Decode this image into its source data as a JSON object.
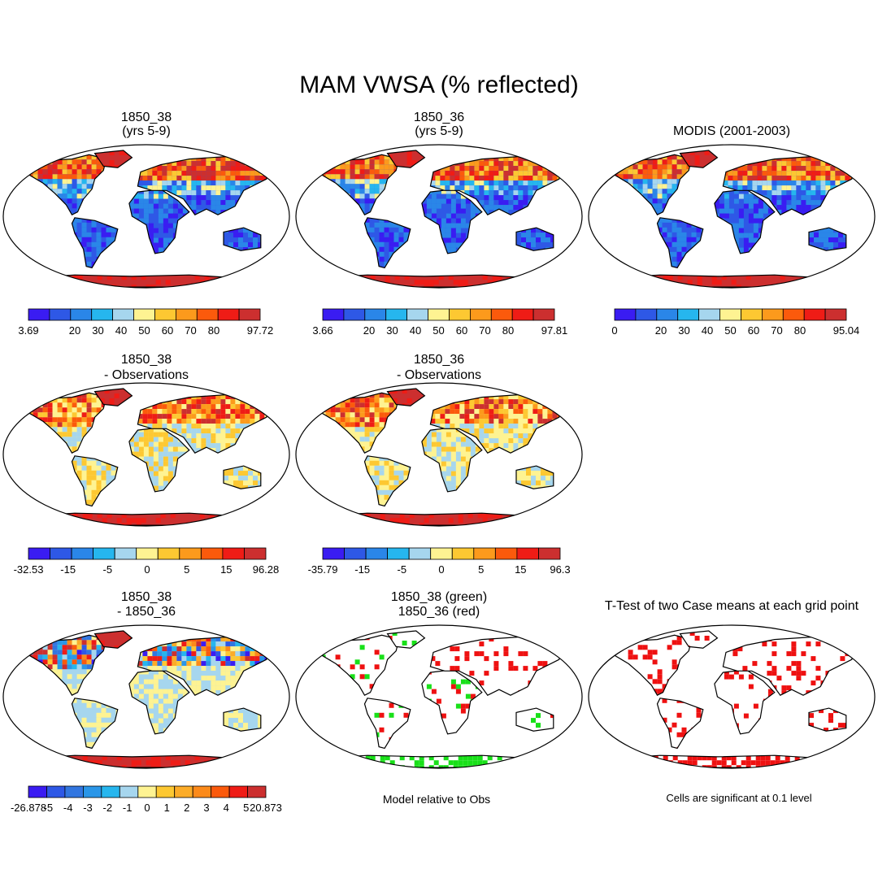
{
  "title": "MAM VWSA (% reflected)",
  "palettes": {
    "abs": [
      "#3a1cf2",
      "#2e58e6",
      "#2a86e8",
      "#26b6ee",
      "#a6d6ee",
      "#fef392",
      "#fdc832",
      "#fc9a1c",
      "#fb5a0c",
      "#ef1c16",
      "#cc2f2f"
    ],
    "diff": [
      "#3a1cf2",
      "#2e58e6",
      "#2a86e8",
      "#26b6ee",
      "#a6d6ee",
      "#fef392",
      "#fdc832",
      "#fc9a1c",
      "#fb5a0c",
      "#ef1c16",
      "#cc2f2f"
    ],
    "ddif": [
      "#3a1cf2",
      "#2e58e6",
      "#3276e0",
      "#2a96e8",
      "#26b6ee",
      "#a6d6ee",
      "#fef392",
      "#fdc832",
      "#fcac28",
      "#fc8a1a",
      "#fb5a0c",
      "#ef1c16",
      "#cc2f2f"
    ],
    "sig_green": "#19e019",
    "sig_red": "#ee1111"
  },
  "panels": [
    {
      "id": "p1",
      "title1": "1850_38",
      "title2": "(yrs 5-9)",
      "kind": "abs",
      "palette": "abs",
      "ticks": [
        "3.69",
        "",
        "20",
        "30",
        "40",
        "50",
        "60",
        "70",
        "80",
        "",
        "97.72"
      ]
    },
    {
      "id": "p2",
      "title1": "1850_36",
      "title2": "(yrs 5-9)",
      "kind": "abs",
      "palette": "abs",
      "ticks": [
        "3.66",
        "",
        "20",
        "30",
        "40",
        "50",
        "60",
        "70",
        "80",
        "",
        "97.81"
      ]
    },
    {
      "id": "p3",
      "title1": "MODIS (2001-2003)",
      "title2": "",
      "kind": "obs",
      "palette": "abs",
      "ticks": [
        "0",
        "",
        "20",
        "30",
        "40",
        "50",
        "60",
        "70",
        "80",
        "",
        "95.04"
      ]
    },
    {
      "id": "p4",
      "title1": "1850_38",
      "title2": "- Observations",
      "kind": "diff",
      "palette": "diff",
      "ticks": [
        "-32.53",
        "",
        "-15",
        "",
        "-5",
        "",
        "0",
        "",
        "5",
        "",
        "15",
        "",
        "96.28"
      ]
    },
    {
      "id": "p5",
      "title1": "1850_36",
      "title2": "- Observations",
      "kind": "diff",
      "palette": "diff",
      "ticks": [
        "-35.79",
        "",
        "-15",
        "",
        "-5",
        "",
        "0",
        "",
        "5",
        "",
        "15",
        "",
        "96.3"
      ]
    },
    {
      "id": "p6",
      "title1": "1850_38",
      "title2": "- 1850_36",
      "kind": "ddiff",
      "palette": "ddif",
      "ticks": [
        "-26.878",
        "-5",
        "-4",
        "-3",
        "-2",
        "-1",
        "0",
        "1",
        "2",
        "3",
        "4",
        "5",
        "20.873"
      ]
    },
    {
      "id": "p7",
      "title1": "1850_38 (green)",
      "title2": "1850_36 (red)",
      "kind": "sig2",
      "palette": "",
      "ticks": []
    },
    {
      "id": "p8",
      "title1": "T-Test of two Case means at each grid point",
      "title2": "",
      "kind": "sig1",
      "palette": "",
      "ticks": []
    }
  ],
  "captions": {
    "model_relative": "Model relative to Obs",
    "significance": "Cells are significant at 0.1 level"
  }
}
